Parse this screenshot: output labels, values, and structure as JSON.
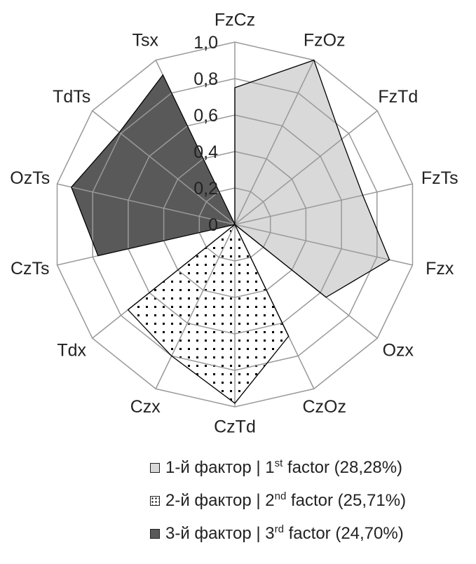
{
  "chart_data": {
    "type": "radar",
    "categories": [
      "FzCz",
      "FzOz",
      "FzTd",
      "FzTs",
      "Fzx",
      "Ozx",
      "CzOz",
      "CzTd",
      "Czx",
      "Tdx",
      "CzTs",
      "OzTs",
      "TdTs",
      "Tsx"
    ],
    "rlim": [
      0,
      1.0
    ],
    "ticks": [
      "0",
      "0,2",
      "0,4",
      "0,6",
      "0,8",
      "1,0"
    ],
    "tick_values": [
      0,
      0.2,
      0.4,
      0.6,
      0.8,
      1.0
    ],
    "grid": true,
    "legend_position": "bottom-right",
    "series": [
      {
        "name": "1-й фактор | 1st factor (28,28%)",
        "prefix": "1-й фактор | 1",
        "sup": "st",
        "suffix": " factor (28,28%)",
        "fill": "#d9d9d9",
        "pattern": "solid",
        "values": [
          0.75,
          1.0,
          0.75,
          0.72,
          0.87,
          0.64,
          0,
          0,
          0,
          0,
          0,
          0,
          0,
          0
        ]
      },
      {
        "name": "2-й фактор | 2nd factor (25,71%)",
        "prefix": "2-й фактор | 2",
        "sup": "nd",
        "suffix": " factor (25,71%)",
        "fill": "#ffffff",
        "pattern": "dots",
        "values": [
          0,
          0,
          0,
          0,
          0,
          0,
          0.68,
          0.98,
          0.8,
          0.75,
          0,
          0,
          0,
          0
        ]
      },
      {
        "name": "3-й фактор | 3rd factor (24,70%)",
        "prefix": "3-й фактор | 3",
        "sup": "rd",
        "suffix": " factor (24,70%)",
        "fill": "#595959",
        "pattern": "solid",
        "values": [
          0,
          0,
          0,
          0,
          0,
          0,
          0,
          0,
          0,
          0,
          0.77,
          0.92,
          0.81,
          0.91
        ]
      }
    ]
  }
}
